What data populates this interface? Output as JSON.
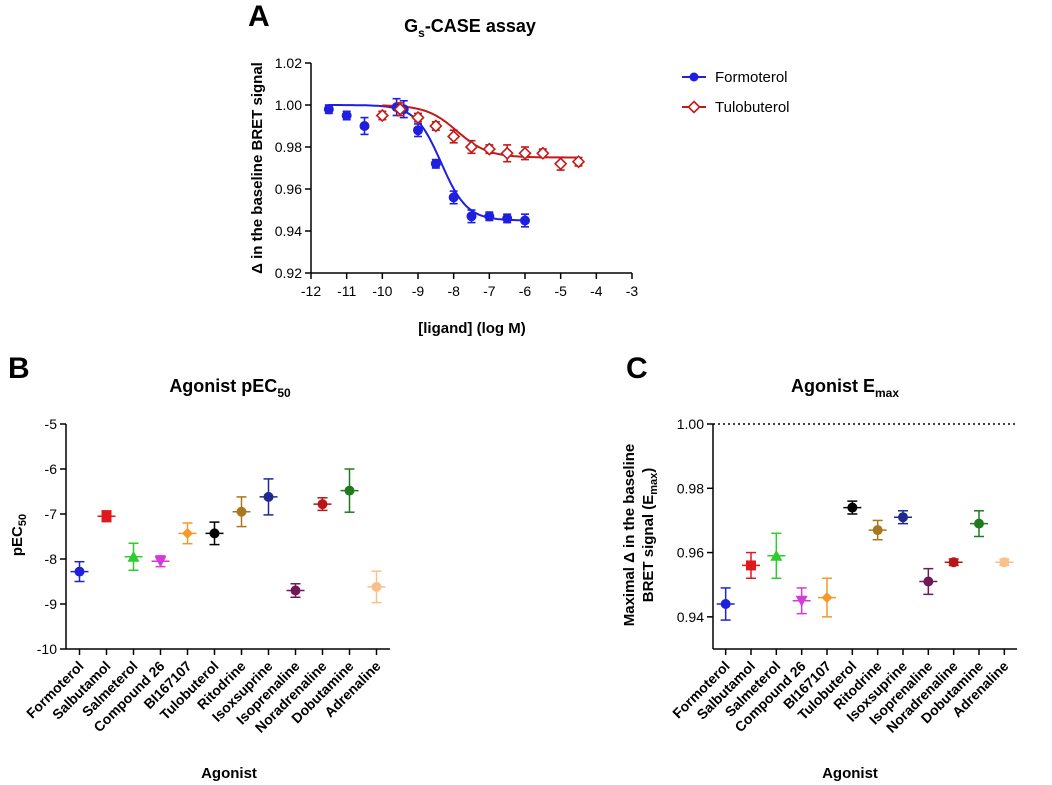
{
  "figure": {
    "panel_labels": [
      "A",
      "B",
      "C"
    ]
  },
  "chart_data": [
    {
      "type": "scatter",
      "panel": "A",
      "title": "Gs-CASE assay",
      "title_main": "G",
      "title_sub": "s",
      "title_rest": "-CASE assay",
      "xlabel": "[ligand] (log M)",
      "ylabel": "Δ in the baseline BRET signal",
      "xlim": [
        -12,
        -3
      ],
      "ylim": [
        0.92,
        1.02
      ],
      "xticks": [
        "-12",
        "-11",
        "-10",
        "-9",
        "-8",
        "-7",
        "-6",
        "-5",
        "-4",
        "-3"
      ],
      "yticks": [
        "0.92",
        "0.94",
        "0.96",
        "0.98",
        "1.00",
        "1.02"
      ],
      "legend_position": "top-right",
      "series": [
        {
          "name": "Formoterol",
          "color": "#1f1fe0",
          "marker": "filled-circle",
          "x": [
            -11.5,
            -11,
            -10.5,
            -9.6,
            -9.4,
            -9,
            -8.5,
            -8,
            -7.5,
            -7,
            -6.5,
            -6
          ],
          "y": [
            0.998,
            0.995,
            0.99,
            0.999,
            0.998,
            0.988,
            0.972,
            0.956,
            0.947,
            0.947,
            0.946,
            0.945
          ],
          "err": [
            0.002,
            0.002,
            0.004,
            0.004,
            0.004,
            0.003,
            0.002,
            0.003,
            0.003,
            0.002,
            0.002,
            0.003
          ],
          "fit": {
            "top": 1.0,
            "bottom": 0.945,
            "logEC50": -8.35,
            "hill": 1.2
          }
        },
        {
          "name": "Tulobuterol",
          "color": "#c41a1a",
          "marker": "open-diamond",
          "x": [
            -10,
            -9.5,
            -9,
            -8.5,
            -8,
            -7.5,
            -7,
            -6.5,
            -6,
            -5.5,
            -5,
            -4.5
          ],
          "y": [
            0.995,
            0.998,
            0.994,
            0.99,
            0.985,
            0.98,
            0.979,
            0.977,
            0.977,
            0.977,
            0.972,
            0.973
          ],
          "err": [
            0.002,
            0.003,
            0.002,
            0.002,
            0.003,
            0.003,
            0.002,
            0.004,
            0.003,
            0.002,
            0.003,
            0.002
          ],
          "fit": {
            "top": 1.0,
            "bottom": 0.975,
            "logEC50": -7.9,
            "hill": 1.0
          }
        }
      ]
    },
    {
      "type": "scatter",
      "panel": "B",
      "title": "Agonist pEC50",
      "title_main": "Agonist pEC",
      "title_sub": "50",
      "xlabel": "Agonist",
      "ylabel": "pEC50",
      "ylabel_main": "pEC",
      "ylabel_sub": "50",
      "ylim": [
        -10,
        -5
      ],
      "yticks": [
        "-5",
        "-6",
        "-7",
        "-8",
        "-9",
        "-10"
      ],
      "categories": [
        "Formoterol",
        "Salbutamol",
        "Salmeterol",
        "Compound 26",
        "BI167107",
        "Tulobuterol",
        "Ritodrine",
        "Isoxsuprine",
        "Isoprenaline",
        "Noradrenaline",
        "Dobutamine",
        "Adrenaline"
      ],
      "values": [
        -8.28,
        -7.05,
        -7.95,
        -8.05,
        -7.43,
        -7.43,
        -6.95,
        -6.62,
        -8.7,
        -6.78,
        -6.48,
        -8.62
      ],
      "errors": [
        0.22,
        0.12,
        0.3,
        0.12,
        0.23,
        0.25,
        0.33,
        0.4,
        0.15,
        0.14,
        0.48,
        0.35
      ],
      "markers": [
        "circle",
        "square",
        "triangle-up",
        "triangle-down",
        "diamond",
        "circle",
        "circle",
        "circle",
        "circle",
        "circle",
        "circle",
        "circle"
      ],
      "colors": [
        "#1f1fe0",
        "#e0191c",
        "#2ecc2e",
        "#d43ad6",
        "#f39a2a",
        "#000000",
        "#a97720",
        "#1f2a8c",
        "#6e1a57",
        "#b81616",
        "#1f7a1f",
        "#f8c08b"
      ]
    },
    {
      "type": "scatter",
      "panel": "C",
      "title": "Agonist Emax",
      "title_main": "Agonist E",
      "title_sub": "max",
      "xlabel": "Agonist",
      "ylabel": "Maximal Δ in the baseline BRET signal (Emax)",
      "ylabel_line1": "Maximal Δ in the baseline",
      "ylabel_line2a": "BRET signal (E",
      "ylabel_line2sub": "max",
      "ylabel_line2b": ")",
      "ylim": [
        0.93,
        1.0
      ],
      "yticks": [
        "0.94",
        "0.96",
        "0.98",
        "1.00"
      ],
      "reference_line": 1.0,
      "categories": [
        "Formoterol",
        "Salbutamol",
        "Salmeterol",
        "Compound 26",
        "BI167107",
        "Tulobuterol",
        "Ritodrine",
        "Isoxsuprine",
        "Isoprenaline",
        "Noradrenaline",
        "Dobutamine",
        "Adrenaline"
      ],
      "values": [
        0.944,
        0.956,
        0.959,
        0.945,
        0.946,
        0.974,
        0.967,
        0.971,
        0.951,
        0.957,
        0.969,
        0.957
      ],
      "errors": [
        0.005,
        0.004,
        0.007,
        0.004,
        0.006,
        0.002,
        0.003,
        0.002,
        0.004,
        0.001,
        0.004,
        0.001
      ],
      "markers": [
        "circle",
        "square",
        "triangle-up",
        "triangle-down",
        "diamond",
        "circle",
        "circle",
        "circle",
        "circle",
        "circle",
        "circle",
        "circle"
      ],
      "colors": [
        "#1f1fe0",
        "#e0191c",
        "#2ecc2e",
        "#d43ad6",
        "#f39a2a",
        "#000000",
        "#a97720",
        "#1f2a8c",
        "#6e1a57",
        "#b81616",
        "#1f7a1f",
        "#f8c08b"
      ]
    }
  ]
}
